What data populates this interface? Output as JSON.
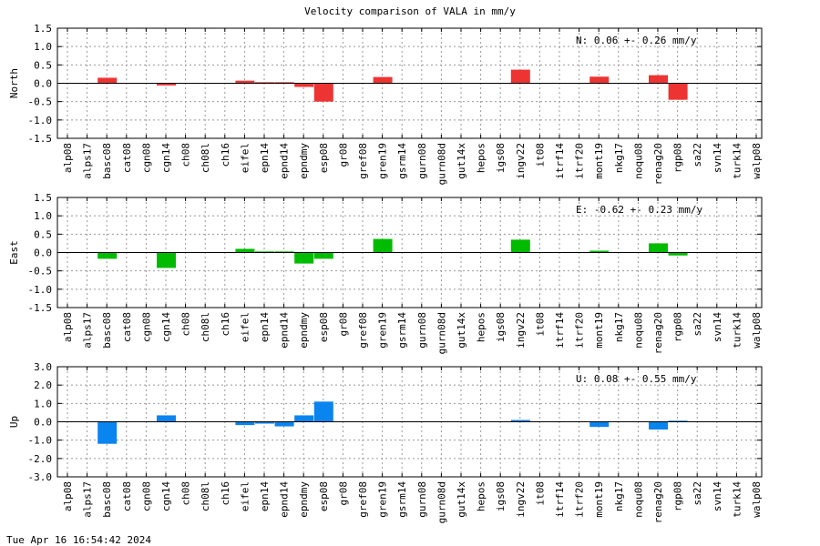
{
  "page": {
    "title": "Velocity comparison of VALA in mm/y",
    "footer": "Tue Apr 16 16:54:42 2024"
  },
  "chart_data": [
    {
      "type": "bar",
      "ylabel": "North",
      "color": "#ee3333",
      "ylim": [
        -1.5,
        1.5
      ],
      "yticks": [
        "1.5",
        "1.0",
        "0.5",
        "0.0",
        "-0.5",
        "-1.0",
        "-1.5"
      ],
      "annotation": "N:   0.06 +-  0.26 mm/y",
      "grid": true,
      "categories": [
        "alp08",
        "alps17",
        "basc08",
        "cat08",
        "cgn08",
        "cgn14",
        "ch08",
        "ch08l",
        "ch16",
        "eifel",
        "epn14",
        "epnd14",
        "epndmy",
        "esp08",
        "gr08",
        "gref08",
        "gren19",
        "gsrm14",
        "gurn08",
        "gurn08d",
        "gut14x",
        "hepos",
        "igs08",
        "ingv22",
        "it08",
        "itrf14",
        "itrf20",
        "mont19",
        "nkg17",
        "noqu08",
        "renag20",
        "rgp08",
        "sa22",
        "svn14",
        "turk14",
        "walp08"
      ],
      "values": [
        0,
        0,
        0.15,
        0,
        0,
        -0.06,
        0,
        0,
        0,
        0.07,
        0.03,
        0.03,
        -0.1,
        -0.5,
        0,
        0,
        0.17,
        0,
        0,
        0,
        0,
        0,
        0,
        0.37,
        0,
        0,
        0,
        0.18,
        0,
        0,
        0.22,
        -0.45,
        0,
        0,
        0,
        0
      ]
    },
    {
      "type": "bar",
      "ylabel": "East",
      "color": "#00bb00",
      "ylim": [
        -1.5,
        1.5
      ],
      "yticks": [
        "1.5",
        "1.0",
        "0.5",
        "0.0",
        "-0.5",
        "-1.0",
        "-1.5"
      ],
      "annotation": "E:  -0.62 +-  0.23 mm/y",
      "grid": true,
      "categories": [
        "alp08",
        "alps17",
        "basc08",
        "cat08",
        "cgn08",
        "cgn14",
        "ch08",
        "ch08l",
        "ch16",
        "eifel",
        "epn14",
        "epnd14",
        "epndmy",
        "esp08",
        "gr08",
        "gref08",
        "gren19",
        "gsrm14",
        "gurn08",
        "gurn08d",
        "gut14x",
        "hepos",
        "igs08",
        "ingv22",
        "it08",
        "itrf14",
        "itrf20",
        "mont19",
        "nkg17",
        "noqu08",
        "renag20",
        "rgp08",
        "sa22",
        "svn14",
        "turk14",
        "walp08"
      ],
      "values": [
        0,
        0,
        -0.17,
        0,
        0,
        -0.42,
        0,
        0,
        0,
        0.1,
        0.03,
        0.03,
        -0.3,
        -0.17,
        0,
        0,
        0.37,
        0,
        0,
        0,
        0,
        0,
        0,
        0.35,
        0,
        0,
        0,
        0.05,
        0,
        0,
        0.25,
        -0.08,
        0,
        0,
        0,
        0
      ]
    },
    {
      "type": "bar",
      "ylabel": "Up",
      "color": "#0a84ee",
      "ylim": [
        -3.0,
        3.0
      ],
      "yticks": [
        "3.0",
        "2.0",
        "1.0",
        "0.0",
        "-1.0",
        "-2.0",
        "-3.0"
      ],
      "annotation": "U:   0.08 +-  0.55 mm/y",
      "grid": true,
      "categories": [
        "alp08",
        "alps17",
        "basc08",
        "cat08",
        "cgn08",
        "cgn14",
        "ch08",
        "ch08l",
        "ch16",
        "eifel",
        "epn14",
        "epnd14",
        "epndmy",
        "esp08",
        "gr08",
        "gref08",
        "gren19",
        "gsrm14",
        "gurn08",
        "gurn08d",
        "gut14x",
        "hepos",
        "igs08",
        "ingv22",
        "it08",
        "itrf14",
        "itrf20",
        "mont19",
        "nkg17",
        "noqu08",
        "renag20",
        "rgp08",
        "sa22",
        "svn14",
        "turk14",
        "walp08"
      ],
      "values": [
        0,
        0,
        -1.2,
        0,
        0,
        0.35,
        0,
        0,
        0,
        -0.18,
        -0.1,
        -0.25,
        0.35,
        1.1,
        0,
        0,
        0,
        0,
        0,
        0,
        0,
        0,
        0,
        0.1,
        0,
        0,
        0,
        -0.28,
        0,
        0,
        -0.42,
        0.06,
        0,
        0,
        0,
        0
      ]
    }
  ]
}
